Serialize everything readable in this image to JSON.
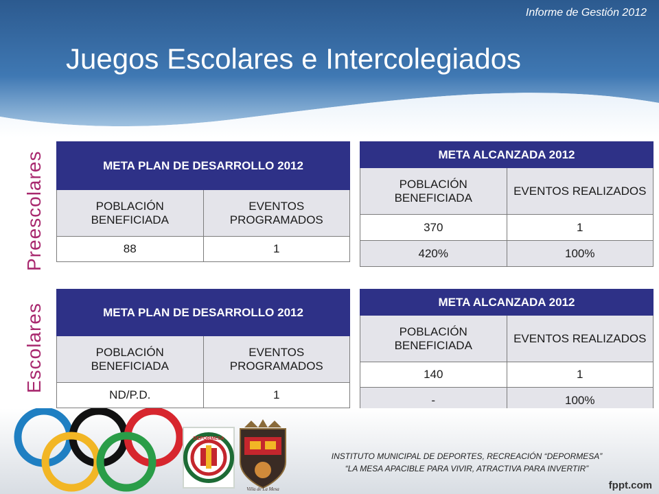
{
  "header": {
    "report_label": "Informe de Gestión 2012",
    "title": "Juegos Escolares e Intercolegiados"
  },
  "sections": {
    "preescolares": "Preescolares",
    "escolares": "Escolares"
  },
  "tables": {
    "pre_plan": {
      "title": "META PLAN DE DESARROLLO 2012",
      "col1": "POBLACIÓN BENEFICIADA",
      "col2": "EVENTOS PROGRAMADOS",
      "row1": [
        "88",
        "1"
      ]
    },
    "pre_alcanzada": {
      "title": "META  ALCANZADA 2012",
      "col1": "POBLACIÓN BENEFICIADA",
      "col2": "EVENTOS REALIZADOS",
      "row1": [
        "370",
        "1"
      ],
      "row2": [
        "420%",
        "100%"
      ]
    },
    "esc_plan": {
      "title": "META PLAN DE DESARROLLO 2012",
      "col1": "POBLACIÓN BENEFICIADA",
      "col2": "EVENTOS PROGRAMADOS",
      "row1": [
        "ND/P.D.",
        "1"
      ]
    },
    "esc_alcanzada": {
      "title": "META  ALCANZADA 2012",
      "col1": "POBLACIÓN BENEFICIADA",
      "col2": "EVENTOS REALIZADOS",
      "row1": [
        "140",
        "1"
      ],
      "row2": [
        "-",
        "100%"
      ]
    }
  },
  "footer": {
    "line1": "INSTITUTO MUNICIPAL DE DEPORTES, RECREACIÓN “DEPORMESA”",
    "line2": "“LA MESA APACIBLE PARA VIVIR, ATRACTIVA PARA INVERTIR”",
    "brand": "fppt.com",
    "seal_text_1": "DEPORMESA",
    "seal_text_2": "Villa de La Mesa"
  },
  "colors": {
    "header_blue": "#2f5f95",
    "table_header": "#2e3187",
    "section_label": "#a8286e",
    "ring_blue": "#1f7fc2",
    "ring_black": "#111111",
    "ring_red": "#d7262e",
    "ring_yellow": "#f2b625",
    "ring_green": "#2a9d48"
  }
}
